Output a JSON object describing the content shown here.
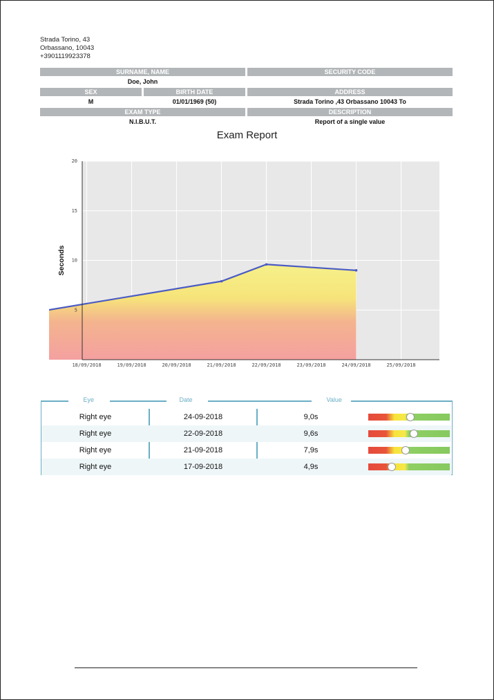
{
  "address": {
    "line1": "Strada Torino, 43",
    "line2": "Orbassano, 10043",
    "phone": "+3901119923378"
  },
  "patient": {
    "surname_name_label": "SURNAME, NAME",
    "surname_name": "Doe, John",
    "security_code_label": "SECURITY CODE",
    "security_code": "",
    "sex_label": "SEX",
    "sex": "M",
    "birth_date_label": "BIRTH DATE",
    "birth_date": "01/01/1969 (50)",
    "address_label": "ADDRESS",
    "address": "Strada Torino ,43 Orbassano 10043 To",
    "exam_type_label": "EXAM TYPE",
    "exam_type": "N.I.B.U.T.",
    "description_label": "DESCRIPTION",
    "description": "Report of a single value"
  },
  "report_title": "Exam Report",
  "chart_data": {
    "type": "area",
    "title": "",
    "xlabel": "",
    "ylabel": "Seconds",
    "ylim": [
      0,
      20
    ],
    "yticks": [
      5,
      10,
      15,
      20
    ],
    "categories": [
      "18/09/2018",
      "19/09/2018",
      "20/09/2018",
      "21/09/2018",
      "22/09/2018",
      "23/09/2018",
      "24/09/2018",
      "25/09/2018"
    ],
    "x": [
      "17/09/2018",
      "21/09/2018",
      "22/09/2018",
      "24/09/2018"
    ],
    "values": [
      4.9,
      7.9,
      9.6,
      9.0
    ],
    "grid": true,
    "line_color": "#4a5bc4",
    "fill_colors": [
      "#f4a0a0",
      "#f6f08a"
    ]
  },
  "results_table": {
    "headers": [
      "Eye",
      "Date",
      "Value"
    ],
    "rows": [
      {
        "eye": "Right eye",
        "date": "24-09-2018",
        "value": "9,0s",
        "level": 0.52
      },
      {
        "eye": "Right eye",
        "date": "22-09-2018",
        "value": "9,6s",
        "level": 0.56
      },
      {
        "eye": "Right eye",
        "date": "21-09-2018",
        "value": "7,9s",
        "level": 0.46
      },
      {
        "eye": "Right eye",
        "date": "17-09-2018",
        "value": "4,9s",
        "level": 0.29
      }
    ],
    "colors": {
      "border": "#6aaec6",
      "low": "#e54a3c",
      "mid": "#f7e33a",
      "high": "#86c95f"
    }
  }
}
